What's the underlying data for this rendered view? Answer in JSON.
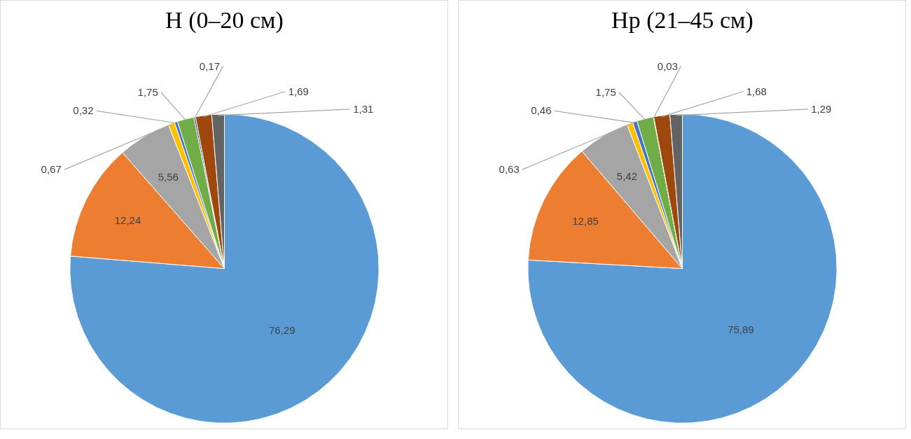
{
  "chart_data": [
    {
      "type": "pie",
      "title": "Н (0–20 см)",
      "categories": [
        null,
        null,
        null,
        null,
        null,
        null,
        null,
        null,
        null
      ],
      "values": [
        76.29,
        12.24,
        5.56,
        0.67,
        0.32,
        1.75,
        0.17,
        1.69,
        1.31
      ],
      "colors": [
        "#5b9bd5",
        "#ed7d31",
        "#a5a5a5",
        "#ffc000",
        "#4472c4",
        "#70ad47",
        "#264478",
        "#9e480e",
        "#636363"
      ],
      "value_labels": [
        "76,29",
        "12,24",
        "5,56",
        "0,67",
        "0,32",
        "1,75",
        "0,17",
        "1,69",
        "1,31"
      ]
    },
    {
      "type": "pie",
      "title": "Нр (21–45 см)",
      "categories": [
        null,
        null,
        null,
        null,
        null,
        null,
        null,
        null,
        null
      ],
      "values": [
        75.89,
        12.85,
        5.42,
        0.63,
        0.46,
        1.75,
        0.03,
        1.68,
        1.29
      ],
      "colors": [
        "#5b9bd5",
        "#ed7d31",
        "#a5a5a5",
        "#ffc000",
        "#4472c4",
        "#70ad47",
        "#264478",
        "#9e480e",
        "#636363"
      ],
      "value_labels": [
        "75,89",
        "12,85",
        "5,42",
        "0,63",
        "0,46",
        "1,75",
        "0,03",
        "1,68",
        "1,29"
      ]
    }
  ]
}
